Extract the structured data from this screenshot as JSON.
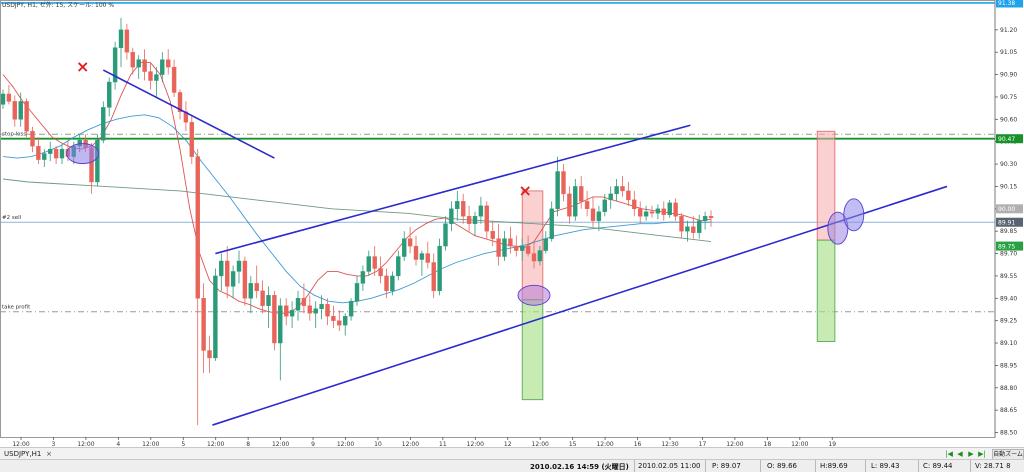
{
  "chart_data": {
    "type": "candlestick",
    "title": "USDJPY, H1, ゼ外: 15, スケール: 100 %",
    "symbol": "USDJPY",
    "timeframe": "H1",
    "price_axis": {
      "range": [
        88.47,
        91.4
      ],
      "ticks": [
        "91.20",
        "91.05",
        "90.90",
        "90.75",
        "90.60",
        "90.45",
        "90.30",
        "90.15",
        "90.00",
        "89.85",
        "89.70",
        "89.55",
        "89.40",
        "89.25",
        "89.10",
        "88.95",
        "88.80",
        "88.65",
        "88.50"
      ],
      "tick_values": [
        91.2,
        91.05,
        90.9,
        90.75,
        90.6,
        90.45,
        90.3,
        90.15,
        90.0,
        89.85,
        89.7,
        89.55,
        89.4,
        89.25,
        89.1,
        88.95,
        88.8,
        88.65,
        88.5
      ]
    },
    "time_axis": {
      "labels": [
        "12:00",
        "3",
        "12:00",
        "4",
        "12:00",
        "5",
        "12:00",
        "8",
        "12:00",
        "9",
        "12:00",
        "10",
        "12:00",
        "11",
        "12:00",
        "12",
        "12:00",
        "15",
        "12:00",
        "16",
        "12:30",
        "17",
        "12:00",
        "18",
        "12:00",
        "19"
      ],
      "positions": [
        0,
        5.5,
        11,
        16.5,
        22,
        27.5,
        33,
        38.5,
        44,
        49.5,
        55,
        60.5,
        66,
        71.5,
        77,
        82.5,
        88,
        93.5,
        99,
        104.5,
        110,
        115.5,
        121,
        126.5,
        132,
        137.5
      ]
    },
    "price_labels": [
      {
        "text": "91.38",
        "value": 91.38,
        "color": "#1ea2ea"
      },
      {
        "text": "90.47",
        "value": 90.47,
        "color": "#17922b"
      },
      {
        "text": "90.00",
        "value": 90.0,
        "color": "#b0b0b0"
      },
      {
        "text": "89.91",
        "value": 89.91,
        "color": "#5a6470"
      },
      {
        "text": "89.75",
        "value": 89.75,
        "color": "#27a143"
      }
    ],
    "horizontal_lines": [
      {
        "label": "",
        "value": 91.38,
        "color": "#1ea2ea",
        "style": "solid"
      },
      {
        "label": "stop loss",
        "value": 90.47,
        "color": "#17922b",
        "style": "solid"
      },
      {
        "label": "",
        "value": 90.5,
        "color": "#9a9a9a",
        "style": "dashdot"
      },
      {
        "label": "#2 sell",
        "value": 89.91,
        "color": "#8fb6d8",
        "style": "solid"
      },
      {
        "label": "take profit",
        "value": 89.31,
        "color": "#9a9a9a",
        "style": "dashdot"
      }
    ],
    "candles": [
      [
        90.7,
        90.8,
        90.67,
        90.77
      ],
      [
        90.77,
        90.83,
        90.7,
        90.72
      ],
      [
        90.72,
        90.76,
        90.55,
        90.6
      ],
      [
        90.6,
        90.78,
        90.55,
        90.72
      ],
      [
        90.72,
        90.74,
        90.48,
        90.52
      ],
      [
        90.52,
        90.55,
        90.38,
        90.42
      ],
      [
        90.42,
        90.48,
        90.3,
        90.33
      ],
      [
        90.33,
        90.4,
        90.28,
        90.37
      ],
      [
        90.37,
        90.45,
        90.32,
        90.4
      ],
      [
        90.4,
        90.42,
        90.3,
        90.34
      ],
      [
        90.34,
        90.43,
        90.3,
        90.4
      ],
      [
        90.4,
        90.46,
        90.32,
        90.35
      ],
      [
        90.35,
        90.45,
        90.3,
        90.42
      ],
      [
        90.42,
        90.5,
        90.38,
        90.46
      ],
      [
        90.46,
        90.5,
        90.38,
        90.41
      ],
      [
        90.41,
        90.44,
        90.1,
        90.18
      ],
      [
        90.18,
        90.5,
        90.15,
        90.46
      ],
      [
        90.46,
        90.72,
        90.44,
        90.68
      ],
      [
        90.68,
        90.88,
        90.62,
        90.85
      ],
      [
        90.85,
        91.12,
        90.8,
        91.08
      ],
      [
        91.08,
        91.28,
        90.95,
        91.2
      ],
      [
        91.2,
        91.24,
        91.0,
        91.05
      ],
      [
        91.05,
        91.08,
        90.9,
        90.95
      ],
      [
        90.95,
        91.03,
        90.87,
        91.0
      ],
      [
        91.0,
        91.07,
        90.86,
        90.92
      ],
      [
        90.92,
        90.98,
        90.8,
        90.86
      ],
      [
        90.86,
        90.95,
        90.75,
        90.9
      ],
      [
        90.9,
        91.05,
        90.85,
        91.0
      ],
      [
        91.0,
        91.07,
        90.9,
        90.95
      ],
      [
        90.95,
        91.0,
        90.75,
        90.78
      ],
      [
        90.78,
        90.8,
        90.6,
        90.65
      ],
      [
        90.65,
        90.72,
        90.52,
        90.58
      ],
      [
        90.58,
        90.62,
        90.3,
        90.35
      ],
      [
        90.35,
        90.4,
        88.55,
        89.4
      ],
      [
        89.4,
        89.5,
        88.9,
        89.05
      ],
      [
        89.05,
        89.15,
        88.9,
        89.0
      ],
      [
        89.0,
        89.6,
        88.98,
        89.55
      ],
      [
        89.55,
        89.7,
        89.45,
        89.65
      ],
      [
        89.65,
        89.75,
        89.4,
        89.48
      ],
      [
        89.48,
        89.62,
        89.4,
        89.58
      ],
      [
        89.58,
        89.72,
        89.5,
        89.65
      ],
      [
        89.65,
        89.68,
        89.35,
        89.4
      ],
      [
        89.4,
        89.55,
        89.3,
        89.5
      ],
      [
        89.5,
        89.62,
        89.4,
        89.45
      ],
      [
        89.45,
        89.52,
        89.3,
        89.35
      ],
      [
        89.35,
        89.48,
        89.2,
        89.42
      ],
      [
        89.42,
        89.45,
        89.05,
        89.1
      ],
      [
        89.1,
        89.4,
        88.85,
        89.35
      ],
      [
        89.35,
        89.4,
        89.22,
        89.28
      ],
      [
        89.28,
        89.38,
        89.2,
        89.32
      ],
      [
        89.32,
        89.45,
        89.25,
        89.4
      ],
      [
        89.4,
        89.5,
        89.3,
        89.35
      ],
      [
        89.35,
        89.42,
        89.25,
        89.3
      ],
      [
        89.3,
        89.38,
        89.2,
        89.33
      ],
      [
        89.33,
        89.42,
        89.26,
        89.36
      ],
      [
        89.36,
        89.4,
        89.22,
        89.28
      ],
      [
        89.28,
        89.35,
        89.2,
        89.25
      ],
      [
        89.25,
        89.32,
        89.18,
        89.22
      ],
      [
        89.22,
        89.3,
        89.15,
        89.28
      ],
      [
        89.28,
        89.4,
        89.25,
        89.38
      ],
      [
        89.38,
        89.55,
        89.35,
        89.5
      ],
      [
        89.5,
        89.62,
        89.45,
        89.58
      ],
      [
        89.58,
        89.72,
        89.55,
        89.68
      ],
      [
        89.68,
        89.75,
        89.55,
        89.6
      ],
      [
        89.6,
        89.68,
        89.5,
        89.55
      ],
      [
        89.55,
        89.6,
        89.4,
        89.45
      ],
      [
        89.45,
        89.58,
        89.42,
        89.55
      ],
      [
        89.55,
        89.72,
        89.52,
        89.68
      ],
      [
        89.68,
        89.85,
        89.65,
        89.8
      ],
      [
        89.8,
        89.88,
        89.7,
        89.75
      ],
      [
        89.75,
        89.82,
        89.62,
        89.66
      ],
      [
        89.66,
        89.72,
        89.55,
        89.7
      ],
      [
        89.7,
        89.78,
        89.6,
        89.64
      ],
      [
        89.64,
        89.7,
        89.4,
        89.45
      ],
      [
        89.45,
        89.8,
        89.42,
        89.75
      ],
      [
        89.75,
        89.95,
        89.72,
        89.9
      ],
      [
        89.9,
        90.05,
        89.85,
        90.0
      ],
      [
        90.0,
        90.12,
        89.92,
        90.05
      ],
      [
        90.05,
        90.1,
        89.9,
        89.95
      ],
      [
        89.95,
        90.02,
        89.85,
        89.9
      ],
      [
        89.9,
        89.98,
        89.82,
        89.95
      ],
      [
        89.95,
        90.08,
        89.9,
        90.02
      ],
      [
        90.02,
        90.05,
        89.8,
        89.85
      ],
      [
        89.85,
        89.92,
        89.75,
        89.8
      ],
      [
        89.8,
        89.9,
        89.62,
        89.68
      ],
      [
        89.68,
        89.85,
        89.65,
        89.8
      ],
      [
        89.8,
        89.88,
        89.7,
        89.75
      ],
      [
        89.75,
        89.82,
        89.68,
        89.72
      ],
      [
        89.72,
        89.8,
        89.65,
        89.75
      ],
      [
        89.75,
        89.82,
        89.68,
        89.7
      ],
      [
        89.7,
        89.78,
        89.6,
        89.65
      ],
      [
        89.65,
        89.75,
        89.62,
        89.72
      ],
      [
        89.72,
        89.85,
        89.7,
        89.8
      ],
      [
        89.8,
        90.05,
        89.78,
        90.0
      ],
      [
        90.0,
        90.35,
        89.95,
        90.25
      ],
      [
        90.25,
        90.3,
        90.05,
        90.1
      ],
      [
        90.1,
        90.15,
        89.9,
        89.95
      ],
      [
        89.95,
        90.2,
        89.92,
        90.15
      ],
      [
        90.15,
        90.22,
        90.0,
        90.05
      ],
      [
        90.05,
        90.12,
        89.95,
        90.0
      ],
      [
        90.0,
        90.08,
        89.88,
        89.92
      ],
      [
        89.92,
        90.02,
        89.85,
        89.98
      ],
      [
        89.98,
        90.1,
        89.95,
        90.06
      ],
      [
        90.06,
        90.15,
        90.0,
        90.1
      ],
      [
        90.1,
        90.2,
        90.05,
        90.15
      ],
      [
        90.15,
        90.22,
        90.08,
        90.12
      ],
      [
        90.12,
        90.18,
        90.02,
        90.06
      ],
      [
        90.06,
        90.12,
        89.95,
        90.0
      ],
      [
        90.0,
        90.05,
        89.9,
        89.95
      ],
      [
        89.95,
        90.02,
        89.92,
        89.98
      ],
      [
        89.98,
        90.02,
        89.94,
        89.97
      ],
      [
        89.97,
        90.03,
        89.93,
        90.0
      ],
      [
        90.0,
        90.05,
        89.92,
        89.96
      ],
      [
        89.96,
        90.06,
        89.94,
        90.04
      ],
      [
        90.04,
        90.07,
        89.92,
        89.95
      ],
      [
        89.95,
        89.97,
        89.8,
        89.85
      ],
      [
        89.85,
        89.92,
        89.78,
        89.88
      ],
      [
        89.88,
        89.95,
        89.8,
        89.84
      ],
      [
        89.84,
        89.96,
        89.8,
        89.92
      ],
      [
        89.92,
        89.98,
        89.86,
        89.95
      ],
      [
        89.95,
        89.99,
        89.88,
        89.94
      ]
    ],
    "moving_averages": [
      {
        "color": "#dc4040",
        "values": [
          90.9,
          90.82,
          90.72,
          90.64,
          90.56,
          90.48,
          90.44,
          90.41,
          90.4,
          90.42,
          90.48,
          90.6,
          90.76,
          90.9,
          90.98,
          90.98,
          90.9,
          90.72,
          90.4,
          90.0,
          89.7,
          89.52,
          89.45,
          89.42,
          89.38,
          89.36,
          89.33,
          89.31,
          89.3,
          89.3,
          89.34,
          89.42,
          89.52,
          89.58,
          89.58,
          89.56,
          89.55,
          89.55,
          89.58,
          89.64,
          89.72,
          89.8,
          89.86,
          89.9,
          89.93,
          89.94,
          89.9,
          89.86,
          89.82,
          89.8,
          89.78,
          89.76,
          89.75,
          89.74,
          89.78,
          89.88,
          89.98,
          90.0,
          90.02,
          90.05,
          90.08,
          90.08,
          90.06,
          90.04,
          90.02,
          90.0,
          89.99,
          89.98,
          89.97,
          89.96,
          89.94,
          89.92,
          89.93
        ]
      },
      {
        "color": "#2a8fcf",
        "values": [
          90.35,
          90.34,
          90.35,
          90.38,
          90.42,
          90.48,
          90.53,
          90.57,
          90.6,
          90.62,
          90.63,
          90.61,
          90.55,
          90.45,
          90.32,
          90.2,
          90.08,
          89.95,
          89.82,
          89.7,
          89.58,
          89.48,
          89.42,
          89.38,
          89.37,
          89.38,
          89.4,
          89.43,
          89.46,
          89.5,
          89.55,
          89.6,
          89.64,
          89.67,
          89.7,
          89.72,
          89.74,
          89.76,
          89.79,
          89.82,
          89.84,
          89.86,
          89.87,
          89.88,
          89.89,
          89.9,
          89.9,
          89.91,
          89.91,
          89.91,
          89.91
        ]
      },
      {
        "color": "#5f8f73",
        "values": [
          90.2,
          90.18,
          90.17,
          90.16,
          90.15,
          90.14,
          90.13,
          90.12,
          90.1,
          90.08,
          90.06,
          90.04,
          90.02,
          90.0,
          89.99,
          89.98,
          89.97,
          89.95,
          89.93,
          89.92,
          89.91,
          89.9,
          89.89,
          89.88,
          89.86,
          89.84,
          89.82,
          89.8,
          89.78
        ]
      }
    ],
    "annotations": [
      {
        "type": "x-mark",
        "time": 13.5,
        "price": 90.95
      },
      {
        "type": "x-mark",
        "time": 88.5,
        "price": 90.12
      },
      {
        "type": "ellipse",
        "time": 13.5,
        "price": 90.37,
        "fill": "#8a7be8"
      },
      {
        "type": "ellipse",
        "time": 90.0,
        "price": 89.42,
        "fill": "#b57bd6"
      },
      {
        "type": "ellipse",
        "time": 141.5,
        "price": 89.87,
        "fill": "#9a86e0"
      },
      {
        "type": "ellipse",
        "time": 144.2,
        "price": 89.96,
        "fill": "#8b86e6"
      },
      {
        "type": "rect-sell",
        "time_start": 88.0,
        "time_end": 91.5,
        "price_top": 90.12,
        "price_bottom": 89.39
      },
      {
        "type": "rect-tp",
        "time_start": 88.0,
        "time_end": 91.5,
        "price_top": 89.39,
        "price_bottom": 88.72
      },
      {
        "type": "rect-sell",
        "time_start": 138.0,
        "time_end": 141.0,
        "price_top": 90.52,
        "price_bottom": 89.79
      },
      {
        "type": "rect-tp",
        "time_start": 138.0,
        "time_end": 141.0,
        "price_top": 89.79,
        "price_bottom": 89.11
      }
    ],
    "trendlines": [
      {
        "time_start": 17.0,
        "price_start": 90.93,
        "time_end": 46.0,
        "price_end": 90.34
      },
      {
        "time_start": 36.0,
        "price_start": 89.7,
        "time_end": 116.5,
        "price_end": 90.56
      },
      {
        "time_start": 35.5,
        "price_start": 88.55,
        "time_end": 160.0,
        "price_end": 90.15
      }
    ],
    "grid": false,
    "legend": "none"
  },
  "tab_bar": {
    "tab_label": "USDJPY,H1",
    "close_symbol": "×",
    "nav_first": "|◀",
    "nav_prev": "◀",
    "nav_next": "▶",
    "nav_last": "▶|",
    "zoom_label": "自動ズーム"
  },
  "status_bar": {
    "datetime": "2010.02.16 14:59 (火曜日)",
    "bar_time": "2010.02.05 11:00",
    "price": "P: 89.07",
    "open": "O: 89.66",
    "high": "H:89.69",
    "low": "L: 89.43",
    "close": "C: 89.44",
    "volume": "V: 28.71 8"
  }
}
